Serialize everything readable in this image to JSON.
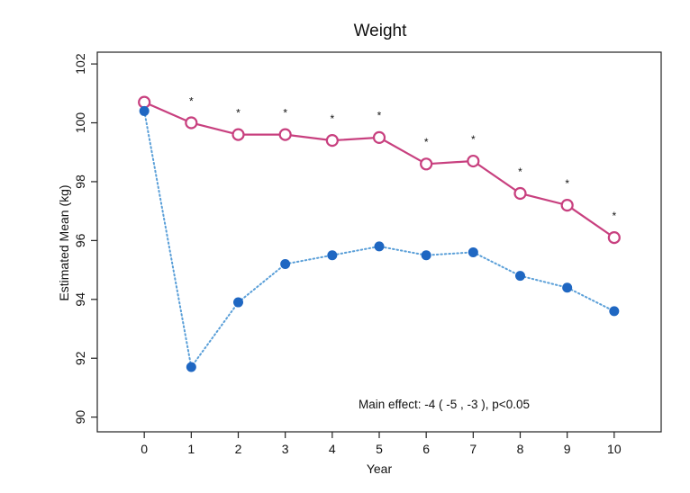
{
  "chart_data": {
    "type": "line",
    "title": "Weight",
    "xlabel": "Year",
    "ylabel": "Estimated Mean (kg)",
    "x": [
      0,
      1,
      2,
      3,
      4,
      5,
      6,
      7,
      8,
      9,
      10
    ],
    "xlim": [
      -1,
      11
    ],
    "ylim": [
      89.5,
      102.4
    ],
    "yticks": [
      90,
      92,
      94,
      96,
      98,
      100,
      102
    ],
    "grid": false,
    "legend": "none",
    "series": [
      {
        "style": "solid",
        "marker": "open-circle",
        "color": "#c8407f",
        "values": [
          100.7,
          100.0,
          99.6,
          99.6,
          99.4,
          99.5,
          98.6,
          98.7,
          97.6,
          97.2,
          96.1
        ]
      },
      {
        "style": "dotted",
        "marker": "filled-circle",
        "color": "#1f67c2",
        "line_color": "#5a9fd8",
        "values": [
          100.4,
          91.7,
          93.9,
          95.2,
          95.5,
          95.8,
          95.5,
          95.6,
          94.8,
          94.4,
          93.6
        ]
      }
    ],
    "significance_markers": {
      "symbol": "*",
      "x": [
        1,
        2,
        3,
        4,
        5,
        6,
        7,
        8,
        9,
        10
      ],
      "y": [
        100.8,
        100.4,
        100.4,
        100.2,
        100.3,
        99.4,
        99.5,
        98.4,
        98.0,
        96.9
      ]
    },
    "annotation": "Main effect:  -4 ( -5 , -3 ), p<0.05"
  }
}
